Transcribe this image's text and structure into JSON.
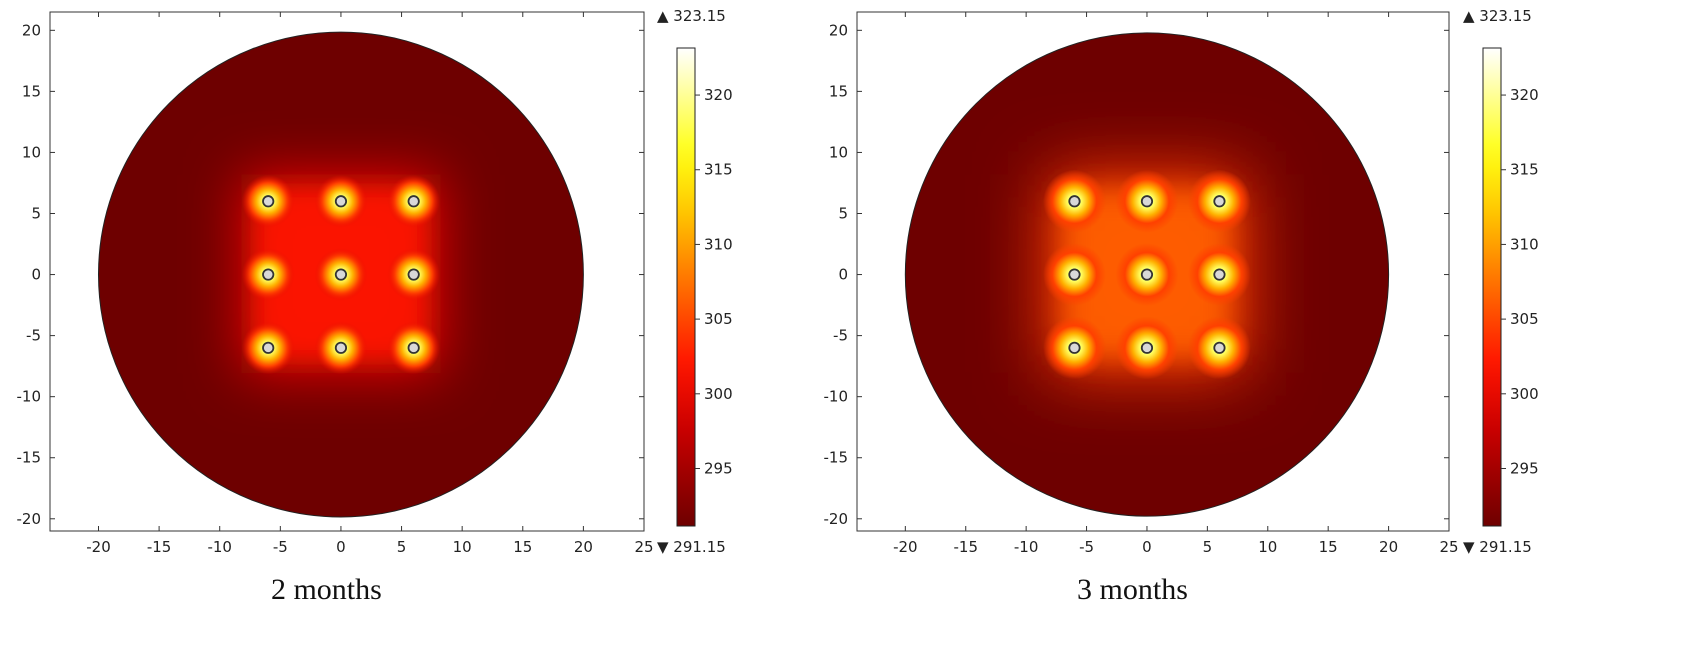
{
  "chart_data": [
    {
      "type": "heatmap",
      "caption": "2 months",
      "xlim": [
        -24,
        25
      ],
      "ylim": [
        -21,
        21.5
      ],
      "x_ticks": [
        -20,
        -15,
        -10,
        -5,
        0,
        5,
        10,
        15,
        20,
        25
      ],
      "y_ticks": [
        20,
        15,
        10,
        5,
        0,
        -5,
        -10,
        -15,
        -20
      ],
      "domain_radius": 20,
      "sources": [
        [
          -6,
          6
        ],
        [
          0,
          6
        ],
        [
          6,
          6
        ],
        [
          -6,
          0
        ],
        [
          0,
          0
        ],
        [
          6,
          0
        ],
        [
          -6,
          -6
        ],
        [
          0,
          -6
        ],
        [
          6,
          -6
        ]
      ],
      "colorbar": {
        "min": 291.15,
        "max": 323.15,
        "min_label": "▼ 291.15",
        "max_label": "▲ 323.15",
        "ticks": [
          320,
          315,
          310,
          305,
          300,
          295
        ]
      },
      "field": {
        "core": 0.52,
        "halo": 4.1,
        "inner_glow": 0.28
      }
    },
    {
      "type": "heatmap",
      "caption": "3 months",
      "xlim": [
        -24,
        25
      ],
      "ylim": [
        -21,
        21.5
      ],
      "x_ticks": [
        -20,
        -15,
        -10,
        -5,
        0,
        5,
        10,
        15,
        20,
        25
      ],
      "y_ticks": [
        20,
        15,
        10,
        5,
        0,
        -5,
        -10,
        -15,
        -20
      ],
      "domain_radius": 20,
      "sources": [
        [
          -6,
          6
        ],
        [
          0,
          6
        ],
        [
          6,
          6
        ],
        [
          -6,
          0
        ],
        [
          0,
          0
        ],
        [
          6,
          0
        ],
        [
          -6,
          -6
        ],
        [
          0,
          -6
        ],
        [
          6,
          -6
        ]
      ],
      "colorbar": {
        "min": 291.15,
        "max": 323.15,
        "min_label": "▼ 291.15",
        "max_label": "▲ 323.15",
        "ticks": [
          320,
          315,
          310,
          305,
          300,
          295
        ]
      },
      "field": {
        "core": 0.62,
        "halo": 5.2,
        "inner_glow": 0.42
      }
    }
  ]
}
